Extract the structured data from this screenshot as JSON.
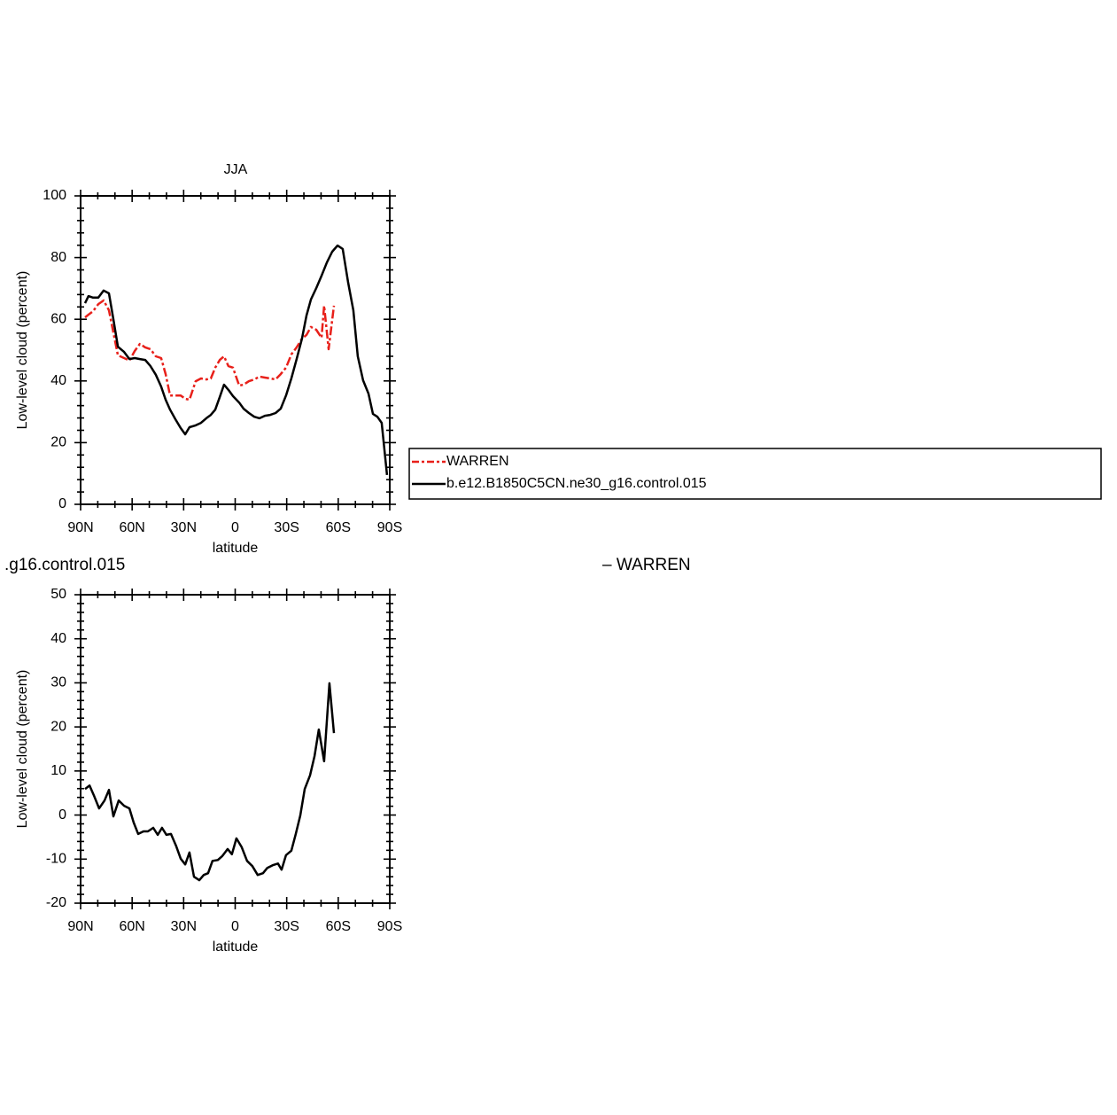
{
  "chart_data": [
    {
      "type": "line",
      "title": "JJA",
      "xlabel": "latitude",
      "ylabel": "Low-level cloud (percent)",
      "xlim": [
        90,
        -90
      ],
      "ylim": [
        0,
        100
      ],
      "xticks": [
        {
          "value": 90,
          "label": "90N"
        },
        {
          "value": 60,
          "label": "60N"
        },
        {
          "value": 30,
          "label": "30N"
        },
        0,
        {
          "value": -30,
          "label": "30S"
        },
        {
          "value": -60,
          "label": "60S"
        },
        {
          "value": -90,
          "label": "90S"
        }
      ],
      "yticks": [
        0,
        20,
        40,
        60,
        80,
        100
      ],
      "legend": "right",
      "series": [
        {
          "name": "WARREN",
          "color": "#e8201a",
          "line_style": "dashed",
          "x": [
            87.4,
            85.4,
            82.8,
            79.7,
            76.6,
            73.5,
            70.9,
            68.3,
            64.7,
            61.6,
            58.5,
            55.5,
            52.4,
            49.3,
            46.2,
            43.1,
            40.5,
            37.9,
            34.8,
            31.7,
            29.1,
            26.6,
            23,
            19.9,
            16.8,
            14.2,
            11.6,
            9,
            6.5,
            3.9,
            1.3,
            -2.3,
            -4.9,
            -8,
            -11.1,
            -14.2,
            -17.3,
            -20.4,
            -23.5,
            -26.5,
            -29.6,
            -32.7,
            -35.8,
            -38.9,
            -41.5,
            -44.1,
            -47.2,
            -50.3,
            -51.8,
            -54.4,
            -57.5
          ],
          "values": [
            60.6,
            61.5,
            62.6,
            64.9,
            66.1,
            62.9,
            55.7,
            48.3,
            47.4,
            46.6,
            49.7,
            52,
            50.9,
            50.3,
            48,
            47.4,
            42.2,
            35.3,
            35.3,
            35.3,
            34.2,
            33.9,
            39.9,
            40.8,
            40.5,
            40.8,
            44.3,
            46.8,
            48,
            44.8,
            44.3,
            38.5,
            38.8,
            39.9,
            40.5,
            41.4,
            41.1,
            40.8,
            40.5,
            42.2,
            44.3,
            48.6,
            50.9,
            53.7,
            54.9,
            57.5,
            56.6,
            54,
            64.4,
            50.3,
            64.4
          ]
        },
        {
          "name": "b.e12.B1850C5CN.ne30_g16.control.015",
          "color": "#000000",
          "line_style": "solid",
          "x": [
            87.4,
            85.4,
            82.8,
            79.7,
            76.6,
            73.5,
            70.9,
            68.3,
            64.7,
            61.6,
            58.5,
            55.5,
            52.4,
            49.3,
            46.2,
            43.1,
            40.5,
            37.9,
            34.8,
            31.7,
            29.1,
            26.6,
            23,
            19.9,
            16.8,
            14.2,
            11.6,
            9,
            6.5,
            3.9,
            1.3,
            -2.3,
            -4.9,
            -8,
            -11.1,
            -14.2,
            -17.3,
            -20.4,
            -23.5,
            -26.5,
            -29.6,
            -32.7,
            -35.8,
            -38.9,
            -41.5,
            -44.1,
            -47.2,
            -50.3,
            -53.4,
            -56.5,
            -59.6,
            -62.6,
            -65.7,
            -68.8,
            -71.4,
            -74.5,
            -77.6,
            -80.2,
            -82.8,
            -85.3,
            -88.4
          ],
          "values": [
            65.2,
            67.5,
            67,
            67,
            69.3,
            68.4,
            60,
            51.1,
            49.4,
            47.1,
            47.4,
            47.1,
            46.8,
            44.8,
            42,
            38.2,
            33.9,
            30.7,
            27.6,
            24.7,
            22.7,
            25,
            25.6,
            26.4,
            27.9,
            29,
            30.7,
            34.8,
            38.8,
            37.1,
            35.1,
            33,
            31,
            29.6,
            28.4,
            27.9,
            28.7,
            29,
            29.6,
            31,
            35.3,
            40.8,
            47.1,
            53.7,
            61.2,
            66.4,
            70.1,
            74.1,
            78.4,
            81.9,
            83.9,
            82.8,
            72.1,
            62.9,
            48,
            40.2,
            35.9,
            29.3,
            28.4,
            26.4,
            9.5
          ]
        }
      ]
    },
    {
      "type": "line",
      "left_title": ".g16.control.015",
      "right_title": "– WARREN",
      "xlabel": "latitude",
      "ylabel": "Low-level cloud (percent)",
      "xlim": [
        90,
        -90
      ],
      "ylim": [
        -20,
        50
      ],
      "xticks": [
        {
          "value": 90,
          "label": "90N"
        },
        {
          "value": 60,
          "label": "60N"
        },
        {
          "value": 30,
          "label": "30N"
        },
        0,
        {
          "value": -30,
          "label": "30S"
        },
        {
          "value": -60,
          "label": "60S"
        },
        {
          "value": -90,
          "label": "90S"
        }
      ],
      "yticks": [
        -20,
        -10,
        0,
        10,
        20,
        30,
        40,
        50
      ],
      "series": [
        {
          "color": "#000000",
          "line_style": "solid",
          "x": [
            87.4,
            84.8,
            82.3,
            79.2,
            76.1,
            73.5,
            70.9,
            67.8,
            64.7,
            61.6,
            59.1,
            56.5,
            53.4,
            50.8,
            47.7,
            45.1,
            42.6,
            40,
            37.4,
            34.3,
            31.7,
            29.1,
            26.6,
            24,
            20.9,
            18.3,
            15.8,
            13.2,
            10.1,
            7.5,
            4.4,
            1.9,
            -0.7,
            -3.8,
            -6.9,
            -10,
            -13.1,
            -16.2,
            -18.7,
            -21.8,
            -24.9,
            -27,
            -29.6,
            -32.7,
            -35.3,
            -37.9,
            -40.5,
            -43.6,
            -46.2,
            -48.7,
            -51.8,
            -54.9,
            -57.5
          ],
          "values": [
            5.9,
            6.7,
            4.5,
            1.5,
            3.3,
            5.7,
            -0.3,
            3.3,
            2.1,
            1.5,
            -1.7,
            -4.3,
            -3.7,
            -3.7,
            -2.9,
            -4.5,
            -2.9,
            -4.5,
            -4.3,
            -7.1,
            -9.9,
            -11.2,
            -8.5,
            -14,
            -14.8,
            -13.6,
            -13.2,
            -10.4,
            -10.2,
            -9.3,
            -7.7,
            -8.9,
            -5.3,
            -7.3,
            -10.4,
            -11.6,
            -13.6,
            -13.2,
            -12,
            -11.4,
            -11,
            -12.4,
            -9.1,
            -8.1,
            -4.3,
            -0.1,
            5.9,
            9,
            13.4,
            19.4,
            12.2,
            29.9,
            18.6
          ]
        }
      ]
    }
  ]
}
